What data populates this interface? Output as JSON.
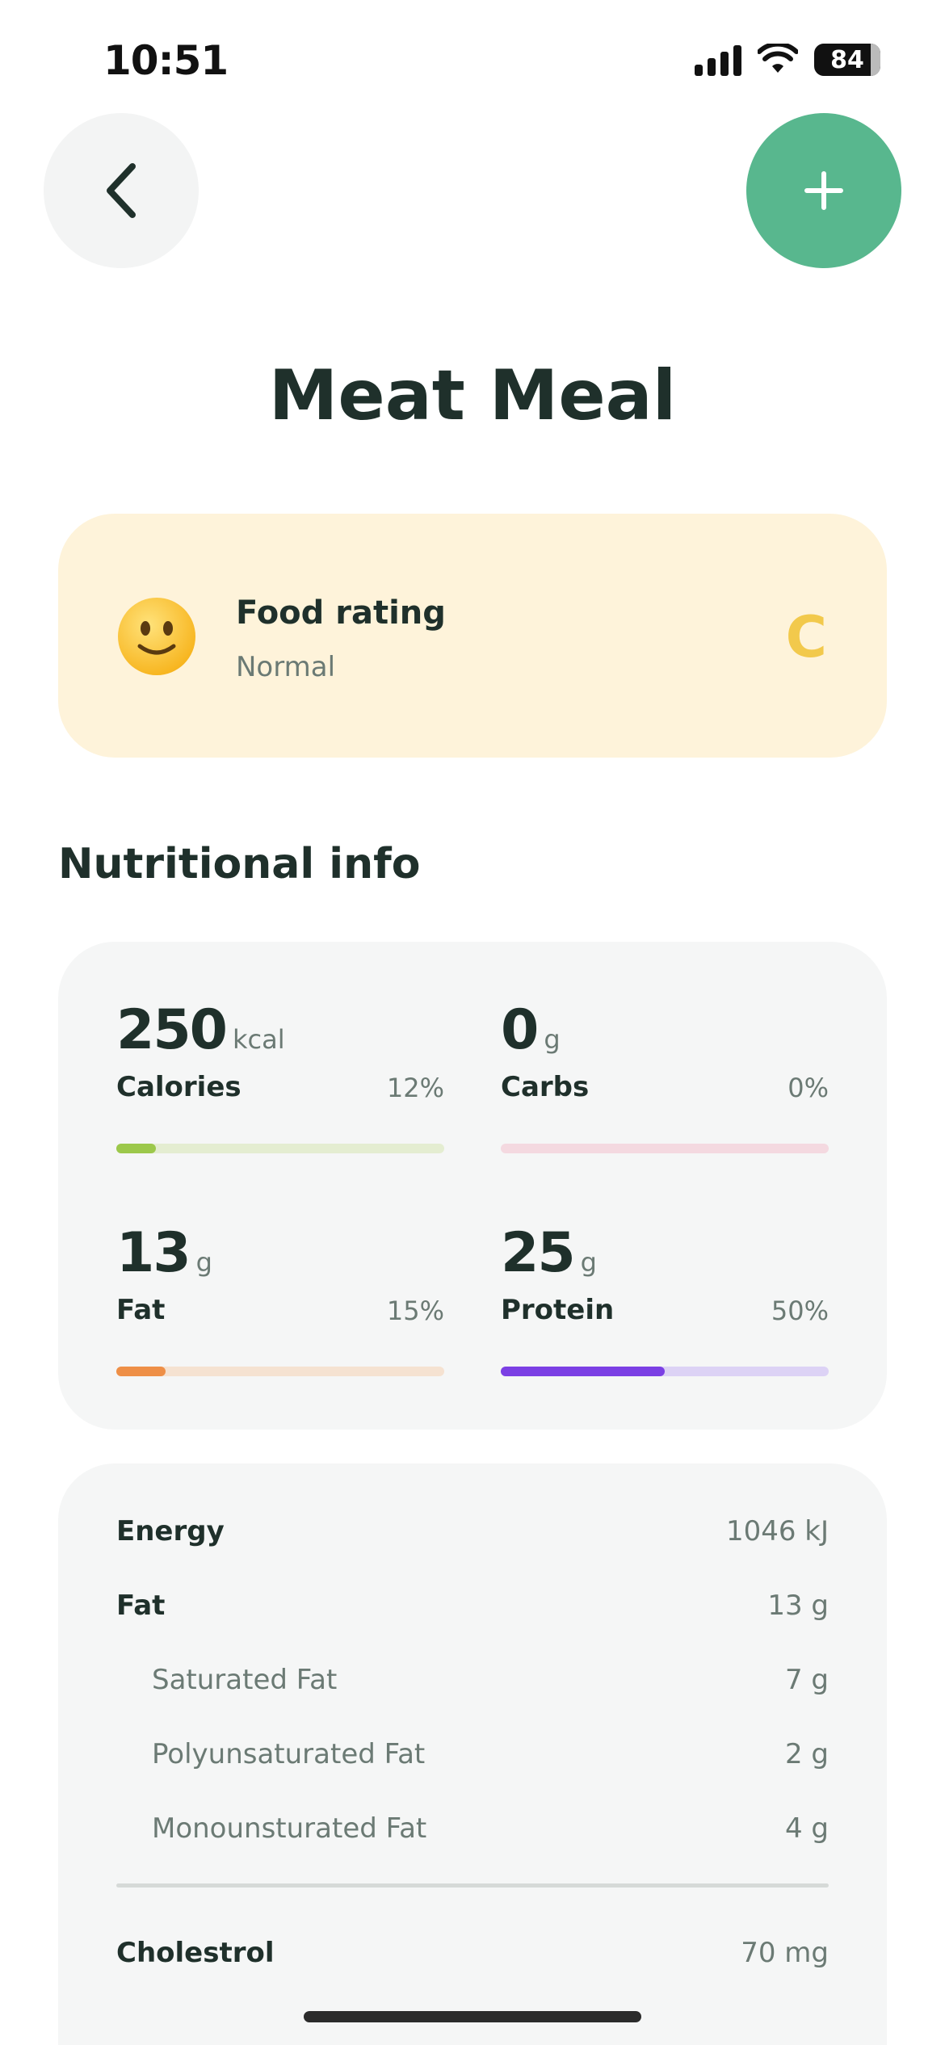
{
  "status_bar": {
    "time": "10:51",
    "battery": "84"
  },
  "header": {
    "title": "Meat Meal"
  },
  "rating": {
    "title": "Food rating",
    "subtitle": "Normal",
    "grade": "C"
  },
  "section_title": "Nutritional info",
  "macros": [
    {
      "amount": "250",
      "unit": "kcal",
      "label": "Calories",
      "percent": "12%",
      "fill": 0.12,
      "color": "#9cc84b",
      "track_color": "#e4edd1"
    },
    {
      "amount": "0",
      "unit": "g",
      "label": "Carbs",
      "percent": "0%",
      "fill": 0.0,
      "color": "#e8a8bb",
      "track_color": "#f4d9e0"
    },
    {
      "amount": "13",
      "unit": "g",
      "label": "Fat",
      "percent": "15%",
      "fill": 0.15,
      "color": "#ee8f47",
      "track_color": "#f5e2d1"
    },
    {
      "amount": "25",
      "unit": "g",
      "label": "Protein",
      "percent": "50%",
      "fill": 0.5,
      "color": "#7b3fe4",
      "track_color": "#dcd2f5"
    }
  ],
  "details": [
    {
      "label": "Energy",
      "value": "1046 kJ",
      "indent": false
    },
    {
      "label": "Fat",
      "value": "13 g",
      "indent": false
    },
    {
      "label": "Saturated Fat",
      "value": "7 g",
      "indent": true
    },
    {
      "label": "Polyunsaturated Fat",
      "value": "2 g",
      "indent": true
    },
    {
      "label": "Monounsturated Fat",
      "value": "4 g",
      "indent": true
    },
    {
      "label": "Cholestrol",
      "value": "70 mg",
      "indent": false
    }
  ],
  "colors": {
    "accent": "#58b78e",
    "rating_bg": "#fef3da",
    "grade": "#f2c94c"
  }
}
